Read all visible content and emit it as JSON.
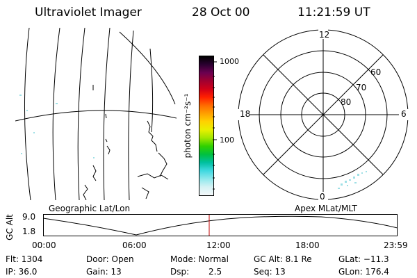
{
  "header": {
    "title": "Ultraviolet Imager",
    "date": "28 Oct 00",
    "time": "11:21:59 UT"
  },
  "colorbar": {
    "unit_label": "photon cm⁻²s⁻¹",
    "tick_1000": "1000",
    "tick_100": "100",
    "colors": [
      "#000000",
      "#2a0030",
      "#6a0050",
      "#a00030",
      "#d00018",
      "#ff2000",
      "#ff6a00",
      "#ffa000",
      "#ffd200",
      "#e8f000",
      "#a0e600",
      "#30d000",
      "#00c040",
      "#00c0a0",
      "#40d8e0",
      "#90e8ec",
      "#d6f2f4",
      "#f4f8fa"
    ]
  },
  "polar": {
    "labels": {
      "top": "12",
      "left": "18",
      "right": "6",
      "bottom": "0"
    },
    "rings": [
      "60",
      "70",
      "80"
    ]
  },
  "panel_labels": {
    "left": "Geographic Lat/Lon",
    "right": "Apex MLat/MLT"
  },
  "altitude_plot": {
    "ylabel": "GC Alt",
    "y_top": "9.0",
    "y_bottom": "1.8",
    "x_ticks": [
      "00:00",
      "06:00",
      "12:00",
      "18:00",
      "23:59"
    ]
  },
  "info": {
    "flt": "Flt: 1304",
    "ip": "IP: 36.0",
    "door": "Door: Open",
    "gain": "Gain: 13",
    "mode": "Mode: Normal",
    "dsp_label": "Dsp:",
    "dsp_value": "2.5",
    "gc_alt": "GC Alt: 8.1 Re",
    "seq": "Seq: 13",
    "glat": "GLat: −11.3",
    "glon": "GLon: 176.4"
  }
}
